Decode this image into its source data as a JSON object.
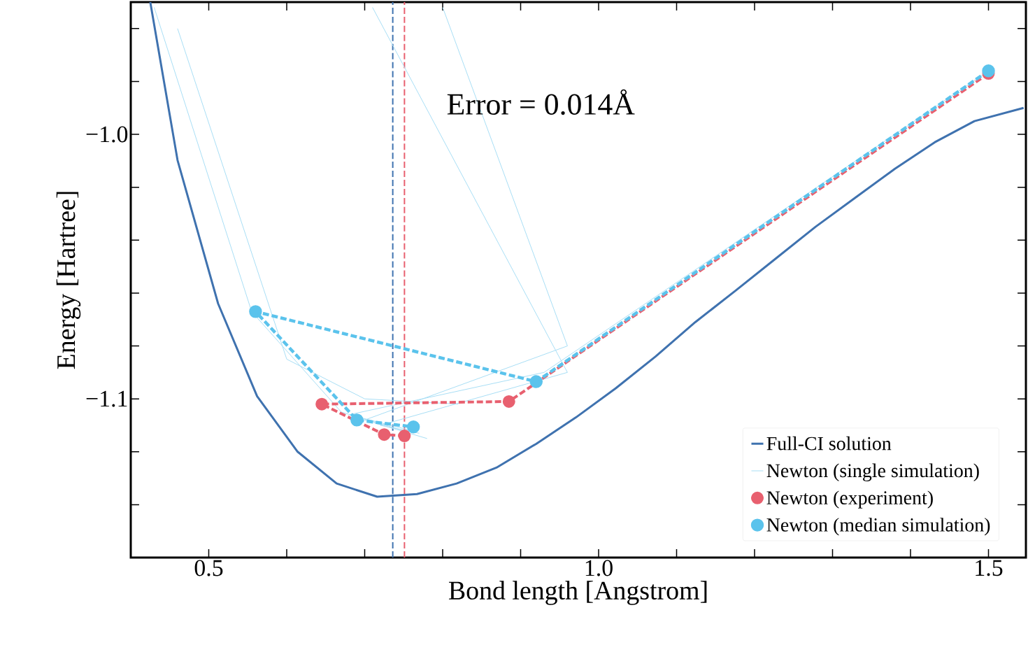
{
  "chart_data": {
    "type": "line",
    "xlabel": "Bond length [Angstrom]",
    "ylabel": "Energy [Hartree]",
    "xlim": [
      0.4,
      1.548
    ],
    "ylim": [
      -1.16,
      -0.95
    ],
    "xticks": [
      {
        "value": 0.4,
        "label": null
      },
      {
        "value": 0.5,
        "label": "0.5"
      },
      {
        "value": 0.6,
        "label": null
      },
      {
        "value": 0.7,
        "label": null
      },
      {
        "value": 0.8,
        "label": null
      },
      {
        "value": 0.9,
        "label": null
      },
      {
        "value": 1.0,
        "label": "1.0"
      },
      {
        "value": 1.1,
        "label": null
      },
      {
        "value": 1.2,
        "label": null
      },
      {
        "value": 1.3,
        "label": null
      },
      {
        "value": 1.4,
        "label": null
      },
      {
        "value": 1.5,
        "label": "1.5"
      }
    ],
    "yticks": [
      {
        "value": -1.16,
        "label": null
      },
      {
        "value": -1.14,
        "label": null
      },
      {
        "value": -1.12,
        "label": null
      },
      {
        "value": -1.1,
        "label": "−1.1"
      },
      {
        "value": -1.08,
        "label": null
      },
      {
        "value": -1.06,
        "label": null
      },
      {
        "value": -1.04,
        "label": null
      },
      {
        "value": -1.02,
        "label": null
      },
      {
        "value": -1.0,
        "label": "−1.0"
      },
      {
        "value": -0.98,
        "label": null
      },
      {
        "value": -0.96,
        "label": null
      }
    ],
    "legend": "bottom right",
    "grid": false,
    "annotations": [
      "Error = 0.014Å"
    ],
    "ref_lines": [
      {
        "axis": "x",
        "value": 0.736,
        "color": "#3f72af",
        "line_style": "dashed"
      },
      {
        "axis": "x",
        "value": 0.751,
        "color": "#e8606f",
        "line_style": "dashed"
      }
    ],
    "series": [
      {
        "name": "Full-CI solution",
        "color": "#3f72af",
        "line_style": "solid",
        "marker": "none",
        "x": [
          0.425,
          0.46,
          0.512,
          0.562,
          0.614,
          0.664,
          0.716,
          0.767,
          0.818,
          0.869,
          0.92,
          0.971,
          1.022,
          1.073,
          1.124,
          1.176,
          1.227,
          1.278,
          1.329,
          1.38,
          1.431,
          1.482,
          1.545
        ],
        "values": [
          -0.95,
          -1.0098,
          -1.064,
          -1.099,
          -1.12,
          -1.132,
          -1.137,
          -1.136,
          -1.132,
          -1.126,
          -1.117,
          -1.107,
          -1.096,
          -1.084,
          -1.071,
          -1.059,
          -1.047,
          -1.035,
          -1.024,
          -1.013,
          -1.003,
          -0.995,
          -0.99
        ]
      },
      {
        "name": "Newton (single simulation)",
        "color": "#a8def5",
        "line_style": "solid",
        "marker": "none",
        "x": [
          0.43,
          0.555,
          0.67,
          0.75,
          null,
          1.5,
          0.93,
          0.68,
          0.76,
          null,
          0.8,
          0.96,
          0.7,
          0.78,
          null,
          0.71,
          0.96,
          0.72,
          0.77,
          null,
          0.46,
          0.6,
          0.7,
          0.82
        ],
        "values": [
          -0.952,
          -1.067,
          -1.105,
          -1.112,
          null,
          -0.976,
          -1.09,
          -1.106,
          -1.112,
          null,
          -0.952,
          -1.08,
          -1.108,
          -1.115,
          null,
          -0.952,
          -1.09,
          -1.11,
          -1.113,
          null,
          -0.96,
          -1.085,
          -1.1,
          -1.102
        ]
      },
      {
        "name": "Newton (experiment)",
        "color": "#e8606f",
        "line_style": "dashed",
        "marker": "circle",
        "x": [
          1.5,
          0.885,
          0.645,
          0.725,
          0.751
        ],
        "values": [
          -0.977,
          -1.101,
          -1.102,
          -1.1135,
          -1.114
        ]
      },
      {
        "name": "Newton (median simulation)",
        "color": "#5bc3ec",
        "line_style": "dashed",
        "marker": "circle",
        "x": [
          1.5,
          0.92,
          0.56,
          0.69,
          0.7625
        ],
        "values": [
          -0.976,
          -1.0935,
          -1.067,
          -1.108,
          -1.1106
        ]
      }
    ]
  }
}
